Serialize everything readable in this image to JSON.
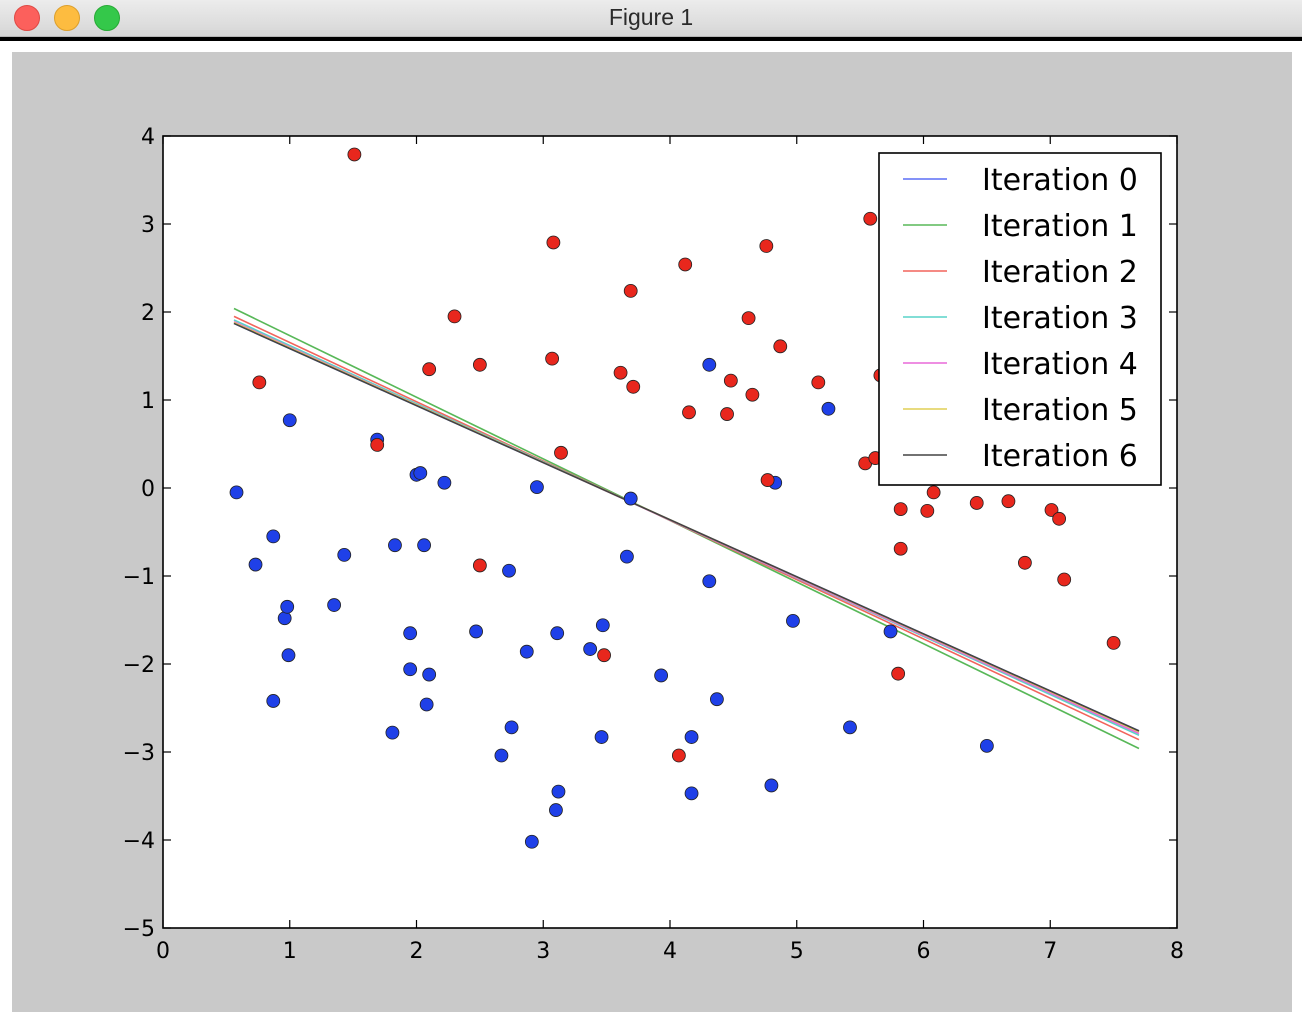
{
  "window": {
    "title": "Figure 1"
  },
  "colors": {
    "figure_bg": "#c9c9c9",
    "axes_bg": "#ffffff",
    "class_a_point": "#e8271d",
    "class_b_point": "#1f40e8"
  },
  "chart_data": {
    "type": "scatter",
    "title": "",
    "xlabel": "",
    "ylabel": "",
    "xlim": [
      0,
      8
    ],
    "ylim": [
      -5,
      4
    ],
    "xticks": [
      0,
      1,
      2,
      3,
      4,
      5,
      6,
      7,
      8
    ],
    "yticks": [
      -5,
      -4,
      -3,
      -2,
      -1,
      0,
      1,
      2,
      3,
      4
    ],
    "xtick_labels": [
      "0",
      "1",
      "2",
      "3",
      "4",
      "5",
      "6",
      "7",
      "8"
    ],
    "ytick_labels": [
      "−5",
      "−4",
      "−3",
      "−2",
      "−1",
      "0",
      "1",
      "2",
      "3",
      "4"
    ],
    "grid": false,
    "legend_position": "top-right",
    "scatter_series": [
      {
        "color": "#1f40e8",
        "points": [
          [
            0.58,
            -0.05
          ],
          [
            0.73,
            -0.87
          ],
          [
            0.87,
            -0.55
          ],
          [
            0.87,
            -2.42
          ],
          [
            0.96,
            -1.48
          ],
          [
            0.98,
            -1.35
          ],
          [
            0.99,
            -1.9
          ],
          [
            1.0,
            0.77
          ],
          [
            1.35,
            -1.33
          ],
          [
            1.43,
            -0.76
          ],
          [
            1.69,
            0.55
          ],
          [
            1.81,
            -2.78
          ],
          [
            1.83,
            -0.65
          ],
          [
            1.95,
            -1.65
          ],
          [
            1.95,
            -2.06
          ],
          [
            2.0,
            0.15
          ],
          [
            2.03,
            0.17
          ],
          [
            2.06,
            -0.65
          ],
          [
            2.08,
            -2.46
          ],
          [
            2.1,
            -2.12
          ],
          [
            2.22,
            0.06
          ],
          [
            2.47,
            -1.63
          ],
          [
            2.67,
            -3.04
          ],
          [
            2.73,
            -0.94
          ],
          [
            2.75,
            -2.72
          ],
          [
            2.87,
            -1.86
          ],
          [
            2.91,
            -4.02
          ],
          [
            2.95,
            0.01
          ],
          [
            3.1,
            -3.66
          ],
          [
            3.11,
            -1.65
          ],
          [
            3.12,
            -3.45
          ],
          [
            3.37,
            -1.83
          ],
          [
            3.46,
            -2.83
          ],
          [
            3.47,
            -1.56
          ],
          [
            3.66,
            -0.78
          ],
          [
            3.69,
            -0.12
          ],
          [
            3.93,
            -2.13
          ],
          [
            4.17,
            -2.83
          ],
          [
            4.17,
            -3.47
          ],
          [
            4.31,
            -1.06
          ],
          [
            4.31,
            1.4
          ],
          [
            4.37,
            -2.4
          ],
          [
            4.8,
            -3.38
          ],
          [
            4.83,
            0.06
          ],
          [
            4.97,
            -1.51
          ],
          [
            5.25,
            0.9
          ],
          [
            5.42,
            -2.72
          ],
          [
            5.74,
            -1.63
          ],
          [
            6.5,
            -2.93
          ]
        ]
      },
      {
        "color": "#e8271d",
        "points": [
          [
            0.76,
            1.2
          ],
          [
            1.51,
            3.79
          ],
          [
            1.69,
            0.49
          ],
          [
            2.1,
            1.35
          ],
          [
            2.3,
            1.95
          ],
          [
            2.5,
            1.4
          ],
          [
            2.5,
            -0.88
          ],
          [
            3.07,
            1.47
          ],
          [
            3.08,
            2.79
          ],
          [
            3.14,
            0.4
          ],
          [
            3.48,
            -1.9
          ],
          [
            3.61,
            1.31
          ],
          [
            3.69,
            2.24
          ],
          [
            3.71,
            1.15
          ],
          [
            4.07,
            -3.04
          ],
          [
            4.12,
            2.54
          ],
          [
            4.15,
            0.86
          ],
          [
            4.45,
            0.84
          ],
          [
            4.48,
            1.22
          ],
          [
            4.62,
            1.93
          ],
          [
            4.65,
            1.06
          ],
          [
            4.76,
            2.75
          ],
          [
            4.77,
            0.09
          ],
          [
            4.87,
            1.61
          ],
          [
            5.17,
            1.2
          ],
          [
            5.54,
            0.28
          ],
          [
            5.58,
            3.06
          ],
          [
            5.62,
            0.34
          ],
          [
            5.66,
            1.28
          ],
          [
            5.8,
            -2.11
          ],
          [
            5.82,
            -0.24
          ],
          [
            5.82,
            -0.69
          ],
          [
            6.03,
            -0.26
          ],
          [
            6.08,
            -0.05
          ],
          [
            6.42,
            -0.17
          ],
          [
            6.67,
            -0.15
          ],
          [
            6.8,
            -0.85
          ],
          [
            7.01,
            -0.25
          ],
          [
            7.07,
            -0.35
          ],
          [
            7.11,
            -1.04
          ],
          [
            7.5,
            -1.76
          ]
        ]
      }
    ],
    "series": [
      {
        "name": "Iteration 0",
        "color": "#5b6ef5",
        "x": [
          0.56,
          7.7
        ],
        "y": [
          1.87,
          -2.76
        ]
      },
      {
        "name": "Iteration 1",
        "color": "#58b858",
        "x": [
          0.56,
          7.7
        ],
        "y": [
          2.04,
          -2.96
        ]
      },
      {
        "name": "Iteration 2",
        "color": "#f2645c",
        "x": [
          0.56,
          7.7
        ],
        "y": [
          1.95,
          -2.86
        ]
      },
      {
        "name": "Iteration 3",
        "color": "#58d3c8",
        "x": [
          0.56,
          7.7
        ],
        "y": [
          1.91,
          -2.81
        ]
      },
      {
        "name": "Iteration 4",
        "color": "#e868d8",
        "x": [
          0.56,
          7.7
        ],
        "y": [
          1.89,
          -2.79
        ]
      },
      {
        "name": "Iteration 5",
        "color": "#e0cf55",
        "x": [
          0.56,
          7.7
        ],
        "y": [
          1.88,
          -2.77
        ]
      },
      {
        "name": "Iteration 6",
        "color": "#444444",
        "x": [
          0.56,
          7.7
        ],
        "y": [
          1.87,
          -2.76
        ]
      }
    ]
  }
}
